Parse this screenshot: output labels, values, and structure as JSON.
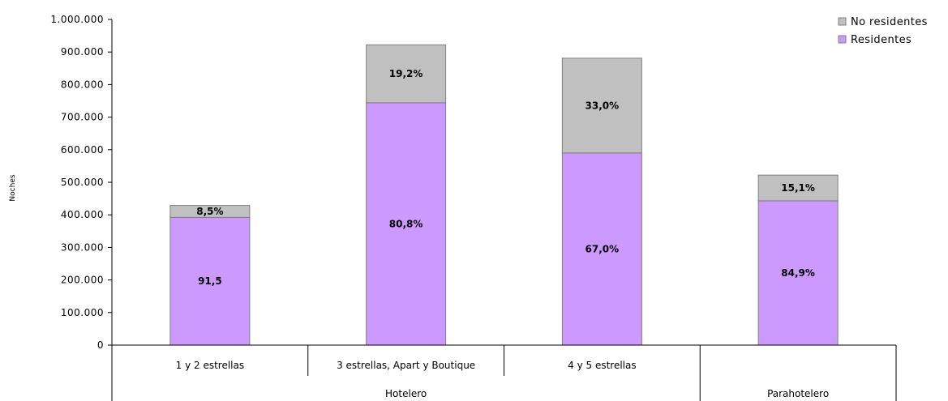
{
  "colors": {
    "residentes": "#cc99ff",
    "no_residentes": "#c0c0c0",
    "stroke": "#808080",
    "axis": "#000000"
  },
  "chart_data": {
    "type": "bar",
    "stacked": true,
    "title": "",
    "xlabel": "",
    "ylabel": "Noches",
    "ylim": [
      0,
      1000000
    ],
    "yticks": [
      "0",
      "100.000",
      "200.000",
      "300.000",
      "400.000",
      "500.000",
      "600.000",
      "700.000",
      "800.000",
      "900.000",
      "1.000.000"
    ],
    "categories": [
      "1 y 2 estrellas",
      "3 estrellas, Apart y Boutique",
      "4 y 5 estrellas",
      ""
    ],
    "groups": [
      {
        "label": "Hotelero",
        "span": 3
      },
      {
        "label": "Parahotelero",
        "span": 1
      }
    ],
    "series": [
      {
        "name": "Residentes",
        "color": "#cc99ff",
        "values": [
          392000,
          744000,
          590000,
          443000
        ],
        "labels": [
          "91,5",
          "80,8%",
          "67,0%",
          "84,9%"
        ]
      },
      {
        "name": "No residentes",
        "color": "#c0c0c0",
        "values": [
          37000,
          178000,
          291000,
          79000
        ],
        "labels": [
          "8,5%",
          "19,2%",
          "33,0%",
          "15,1%"
        ]
      }
    ],
    "grid": false,
    "legend": {
      "position": "top-right",
      "order": [
        "No residentes",
        "Residentes"
      ]
    }
  }
}
